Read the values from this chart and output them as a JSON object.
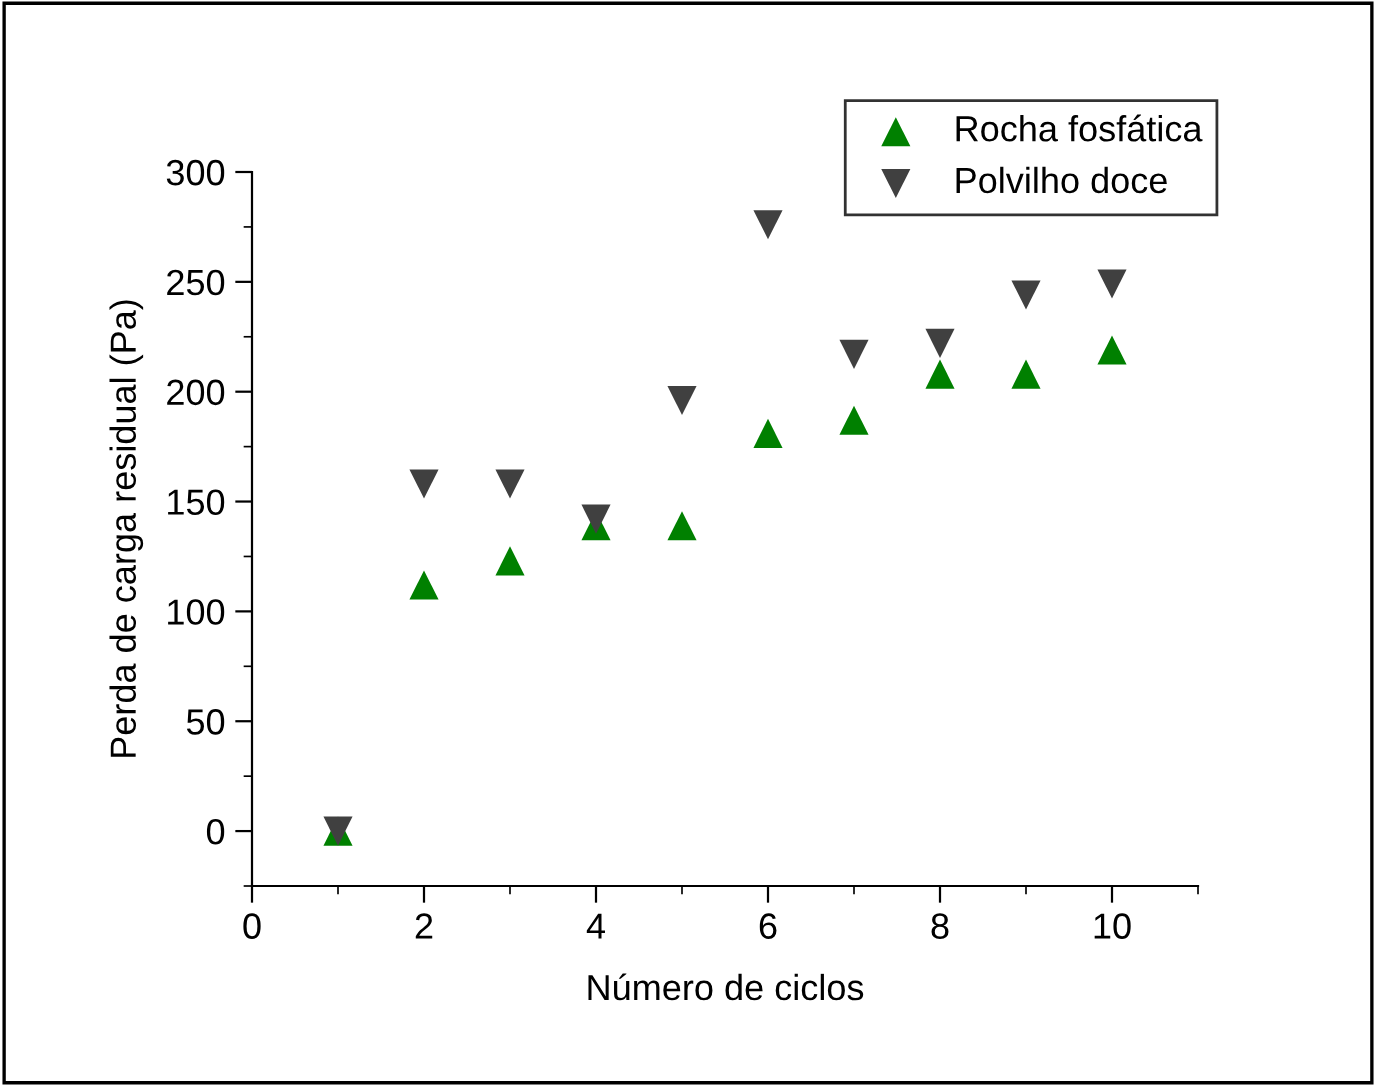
{
  "chart_data": {
    "type": "scatter",
    "xlabel": "Número de ciclos",
    "ylabel": "Perda de carga residual (Pa)",
    "x": [
      1,
      2,
      3,
      4,
      5,
      6,
      7,
      8,
      9,
      10
    ],
    "series": [
      {
        "name": "Rocha fosfática",
        "color": "#008000",
        "marker": "triangle",
        "values": [
          0,
          112,
          123,
          139,
          139,
          181,
          187,
          208,
          208,
          219
        ]
      },
      {
        "name": "Polvilho doce",
        "color": "#404040",
        "marker": "triangle_down",
        "values": [
          0,
          158,
          158,
          142,
          196,
          276,
          217,
          222,
          244,
          249
        ]
      }
    ],
    "xlim": [
      0,
      11
    ],
    "xticks": [
      0,
      2,
      4,
      6,
      8,
      10
    ],
    "ylim": [
      -25,
      300
    ],
    "yticks": [
      0,
      50,
      100,
      150,
      200,
      250,
      300
    ],
    "grid": false,
    "legend": "top right"
  }
}
